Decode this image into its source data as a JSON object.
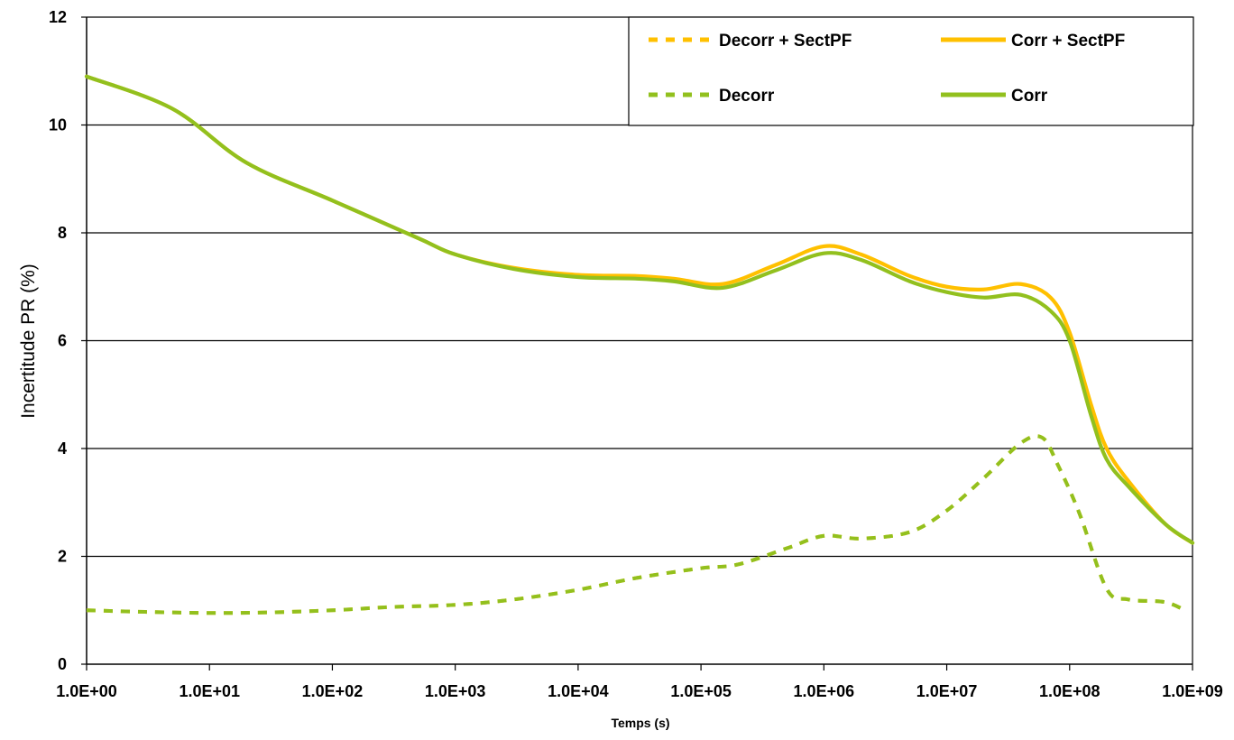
{
  "chart_data": {
    "type": "line",
    "xlabel": "Temps (s)",
    "ylabel": "Incertitude PR (%)",
    "x_scale": "log",
    "xlim": [
      1,
      1000000000
    ],
    "ylim": [
      0,
      12
    ],
    "x_ticks": [
      1,
      10,
      100,
      1000,
      10000,
      100000,
      1000000,
      10000000,
      100000000,
      1000000000
    ],
    "x_tick_labels": [
      "1.0E+00",
      "1.0E+01",
      "1.0E+02",
      "1.0E+03",
      "1.0E+04",
      "1.0E+05",
      "1.0E+06",
      "1.0E+07",
      "1.0E+08",
      "1.0E+09"
    ],
    "y_ticks": [
      0,
      2,
      4,
      6,
      8,
      10,
      12
    ],
    "y_tick_labels": [
      "0",
      "2",
      "4",
      "6",
      "8",
      "10",
      "12"
    ],
    "grid": "horizontal",
    "legend_position": "top-right",
    "colors": {
      "orange": "#FFC000",
      "green": "#92C01E"
    },
    "series": [
      {
        "name": "Decorr + SectPF",
        "color": "#FFC000",
        "dash": true,
        "x": [
          1,
          3,
          10,
          30,
          100,
          300,
          1000,
          3000,
          10000,
          30000,
          100000,
          200000,
          500000,
          1000000,
          2000000,
          5000000,
          10000000,
          20000000,
          40000000,
          60000000,
          80000000,
          120000000,
          200000000,
          300000000,
          600000000,
          900000000
        ],
        "y": [
          1.0,
          0.97,
          0.95,
          0.96,
          1.0,
          1.06,
          1.1,
          1.2,
          1.38,
          1.6,
          1.78,
          1.85,
          2.15,
          2.38,
          2.33,
          2.45,
          2.85,
          3.45,
          4.1,
          4.2,
          3.7,
          2.8,
          1.4,
          1.2,
          1.15,
          0.98
        ]
      },
      {
        "name": "Corr + SectPF",
        "color": "#FFC000",
        "dash": false,
        "x": [
          1,
          5,
          20,
          100,
          500,
          1000,
          3000,
          10000,
          30000,
          60000,
          150000,
          400000,
          1000000,
          2000000,
          5000000,
          10000000,
          20000000,
          40000000,
          70000000,
          100000000,
          150000000,
          200000000,
          300000000,
          600000000,
          1000000000
        ],
        "y": [
          10.9,
          10.3,
          9.3,
          8.6,
          7.9,
          7.6,
          7.35,
          7.22,
          7.2,
          7.15,
          7.05,
          7.4,
          7.75,
          7.6,
          7.2,
          7.0,
          6.95,
          7.05,
          6.8,
          6.15,
          4.8,
          4.0,
          3.4,
          2.6,
          2.25
        ]
      },
      {
        "name": "Decorr",
        "color": "#92C01E",
        "dash": true,
        "x": [
          1,
          3,
          10,
          30,
          100,
          300,
          1000,
          3000,
          10000,
          30000,
          100000,
          200000,
          500000,
          1000000,
          2000000,
          5000000,
          10000000,
          20000000,
          40000000,
          60000000,
          80000000,
          120000000,
          200000000,
          300000000,
          600000000,
          900000000
        ],
        "y": [
          1.0,
          0.97,
          0.95,
          0.96,
          1.0,
          1.06,
          1.1,
          1.2,
          1.38,
          1.6,
          1.78,
          1.85,
          2.15,
          2.38,
          2.33,
          2.45,
          2.85,
          3.45,
          4.1,
          4.2,
          3.7,
          2.8,
          1.4,
          1.2,
          1.15,
          0.98
        ]
      },
      {
        "name": "Corr",
        "color": "#92C01E",
        "dash": false,
        "x": [
          1,
          5,
          20,
          100,
          500,
          1000,
          3000,
          10000,
          30000,
          60000,
          150000,
          400000,
          1000000,
          2000000,
          5000000,
          10000000,
          20000000,
          40000000,
          70000000,
          100000000,
          150000000,
          200000000,
          300000000,
          600000000,
          1000000000
        ],
        "y": [
          10.9,
          10.3,
          9.3,
          8.6,
          7.9,
          7.6,
          7.33,
          7.18,
          7.15,
          7.1,
          6.98,
          7.3,
          7.62,
          7.5,
          7.1,
          6.9,
          6.8,
          6.85,
          6.55,
          6.0,
          4.6,
          3.8,
          3.3,
          2.6,
          2.25
        ]
      }
    ],
    "legend": [
      {
        "label": "Decorr + SectPF",
        "series": "Decorr + SectPF"
      },
      {
        "label": "Corr + SectPF",
        "series": "Corr + SectPF"
      },
      {
        "label": "Decorr",
        "series": "Decorr"
      },
      {
        "label": "Corr",
        "series": "Corr"
      }
    ]
  }
}
